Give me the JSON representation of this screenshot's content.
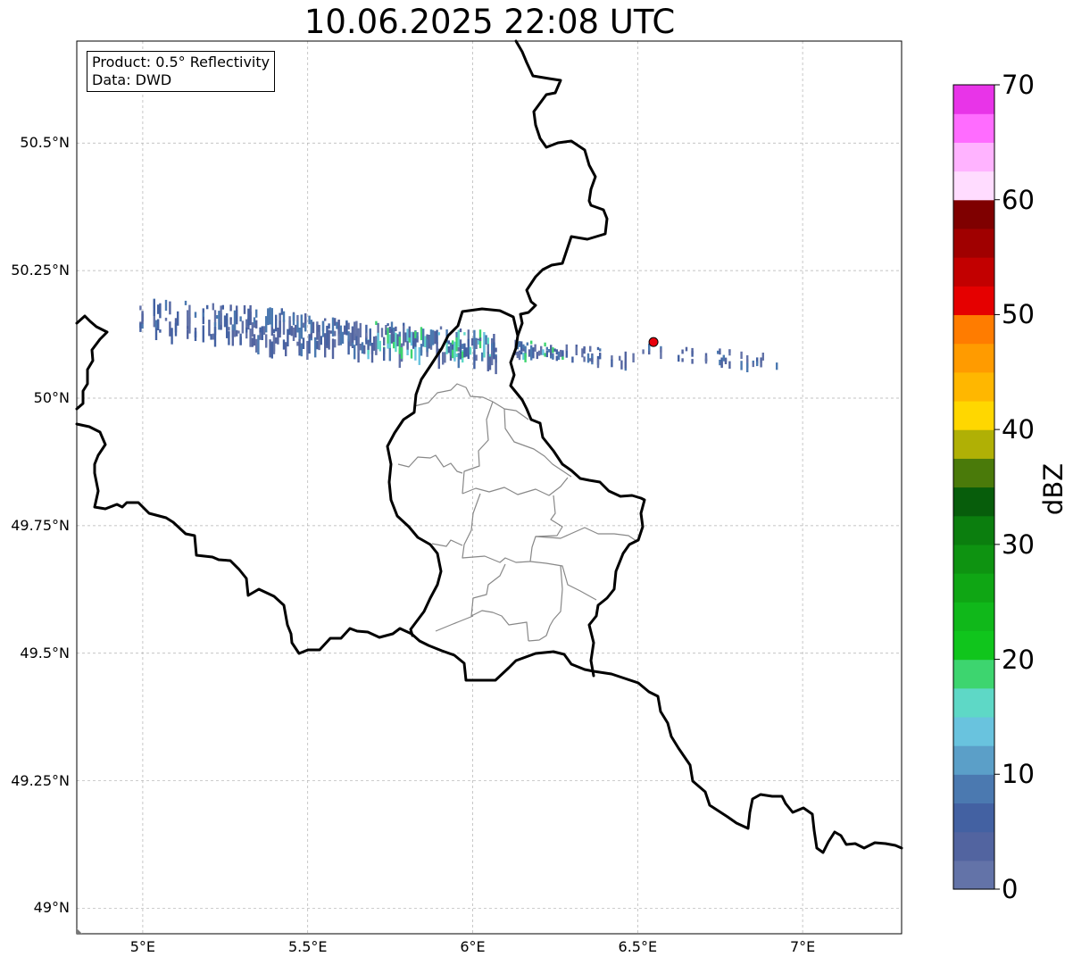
{
  "title": "10.06.2025 22:08 UTC",
  "info": {
    "product_line": "Product: 0.5° Reflectivity",
    "data_line": "Data: DWD"
  },
  "map": {
    "lon_range": [
      4.8,
      7.3
    ],
    "lat_range": [
      48.95,
      50.7
    ],
    "lat_ticks": [
      {
        "value": 50.5,
        "label": "50.5°N"
      },
      {
        "value": 50.25,
        "label": "50.25°N"
      },
      {
        "value": 50.0,
        "label": "50°N"
      },
      {
        "value": 49.75,
        "label": "49.75°N"
      },
      {
        "value": 49.5,
        "label": "49.5°N"
      },
      {
        "value": 49.25,
        "label": "49.25°N"
      },
      {
        "value": 49.0,
        "label": "49°N"
      }
    ],
    "lon_ticks": [
      {
        "value": 5.0,
        "label": "5°E"
      },
      {
        "value": 5.5,
        "label": "5.5°E"
      },
      {
        "value": 6.0,
        "label": "6°E"
      },
      {
        "value": 6.5,
        "label": "6.5°E"
      },
      {
        "value": 7.0,
        "label": "7°E"
      }
    ],
    "grid": true,
    "radar_site": {
      "lon": 6.548,
      "lat": 50.11,
      "color": "#e8000b"
    },
    "precip_band": {
      "lat_center": 50.15,
      "lon_start": 4.99,
      "lon_end": 6.95,
      "max_dbz": 20
    }
  },
  "colorbar": {
    "label": "dBZ",
    "min": 0,
    "max": 70,
    "step": 2.5,
    "tick_labels": [
      "0",
      "10",
      "20",
      "30",
      "40",
      "50",
      "60",
      "70"
    ],
    "colors": [
      "#6373a8",
      "#5264a0",
      "#4361a2",
      "#4b79b0",
      "#5b9fc8",
      "#69c3de",
      "#5ed8c6",
      "#3dd56f",
      "#10c51c",
      "#10b81a",
      "#0fa614",
      "#0e9311",
      "#0b7e0e",
      "#075d0b",
      "#4a7a0a",
      "#b0b005",
      "#ffd700",
      "#ffb700",
      "#ff9b00",
      "#ff7c00",
      "#e50000",
      "#c20000",
      "#a00000",
      "#7f0000",
      "#ffdcff",
      "#ffb3ff",
      "#ff6cff",
      "#e834e8"
    ]
  }
}
